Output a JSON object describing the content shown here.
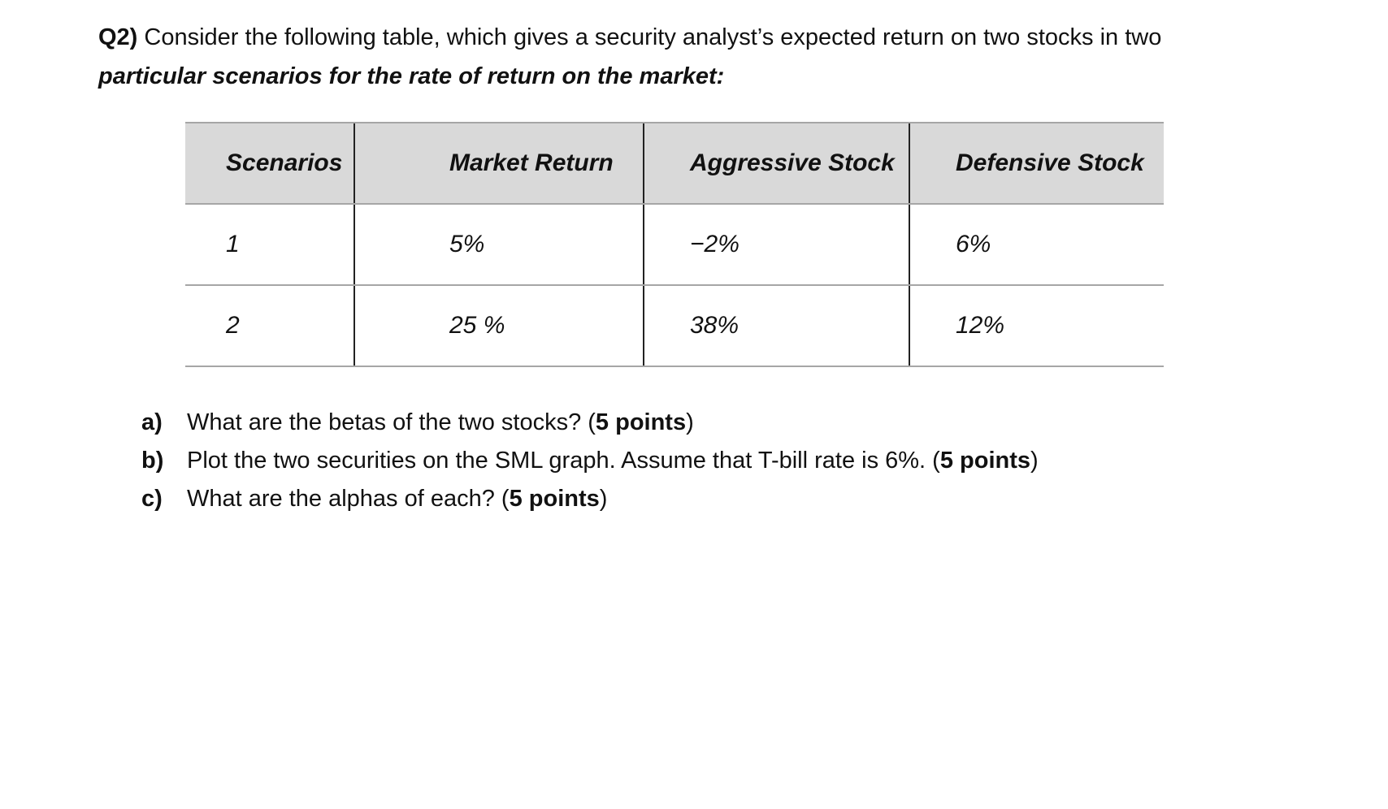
{
  "question": {
    "label": "Q2)",
    "line1": " Consider the following table, which gives a security analyst’s expected return on two stocks in two",
    "line2": "particular scenarios for the rate of return on the market:"
  },
  "table": {
    "headers": [
      "Scenarios",
      "Market Return",
      "Aggressive Stock",
      "Defensive Stock"
    ],
    "rows": [
      [
        "1",
        "5%",
        "−2%",
        "6%"
      ],
      [
        "2",
        "25 %",
        "38%",
        "12%"
      ]
    ]
  },
  "parts": [
    {
      "letter": "a)",
      "text": "What are the betas of the two stocks? (",
      "points": "5 points",
      "close": ")"
    },
    {
      "letter": "b)",
      "text": "Plot the two securities on the SML graph. Assume that T-bill rate is 6%. (",
      "points": "5 points",
      "close": ")"
    },
    {
      "letter": "c)",
      "text": "What are the alphas of each? (",
      "points": "5 points",
      "close": ")"
    }
  ]
}
